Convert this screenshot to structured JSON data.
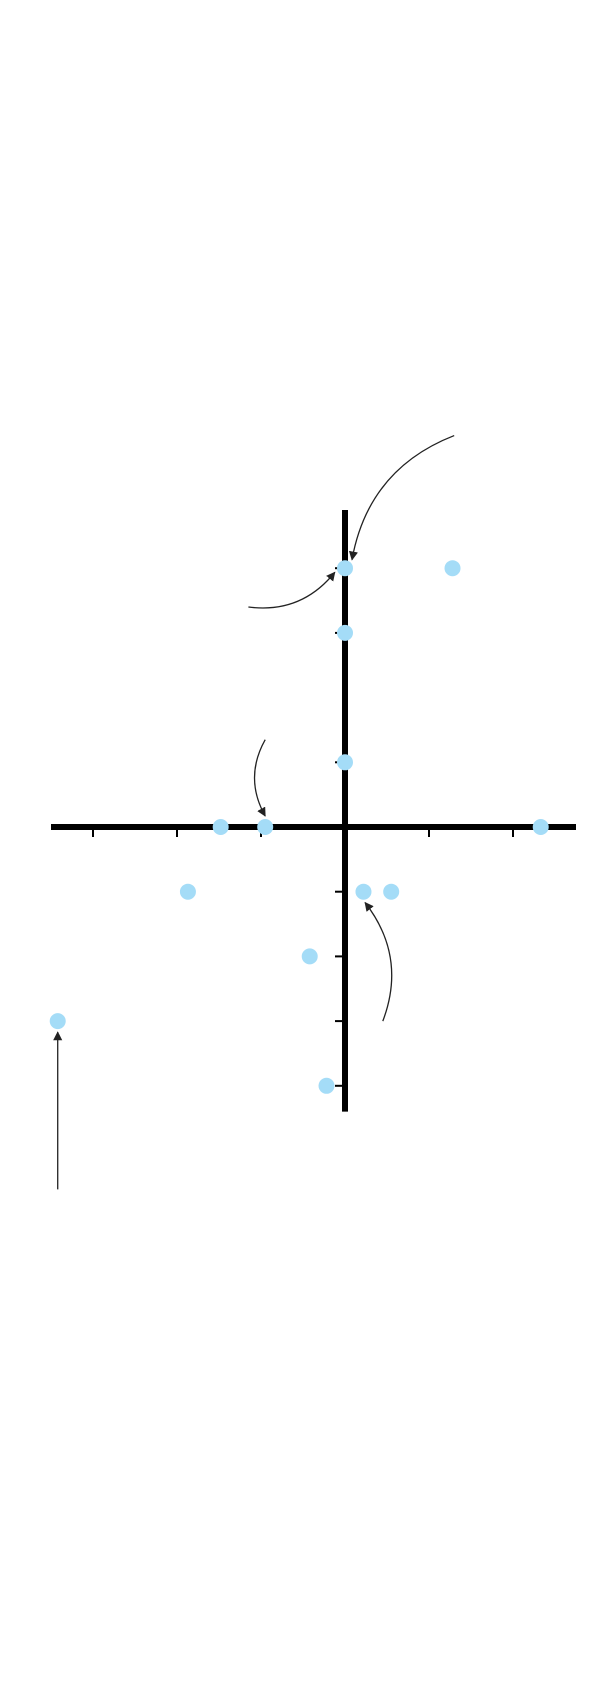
{
  "chart_data": {
    "type": "scatter",
    "xlim": [
      -3.5,
      2.75
    ],
    "ylim": [
      -4.4,
      4.9
    ],
    "x_ticks": [
      -3,
      -2,
      -1,
      1,
      2
    ],
    "y_ticks": [
      -4,
      -3,
      -2,
      -1,
      1,
      3,
      4
    ],
    "grid": false,
    "legend": "none",
    "points": [
      {
        "x": 0,
        "y": 4
      },
      {
        "x": 1.28,
        "y": 4
      },
      {
        "x": 0,
        "y": 3
      },
      {
        "x": 0,
        "y": 1
      },
      {
        "x": -1.48,
        "y": 0
      },
      {
        "x": -0.95,
        "y": 0
      },
      {
        "x": 2.33,
        "y": 0
      },
      {
        "x": -1.87,
        "y": -1
      },
      {
        "x": 0.22,
        "y": -1
      },
      {
        "x": 0.55,
        "y": -1
      },
      {
        "x": -0.42,
        "y": -2
      },
      {
        "x": -3.42,
        "y": -3
      },
      {
        "x": -0.22,
        "y": -4
      }
    ],
    "annotations": [
      {
        "target_x": 0,
        "target_y": 4,
        "from_x": 1.3,
        "from_y": 6.05,
        "style": "curve"
      },
      {
        "target_x": 0,
        "target_y": 4,
        "from_x": -1.15,
        "from_y": 3.4,
        "style": "curve"
      },
      {
        "target_x": -0.95,
        "target_y": 0,
        "from_x": -0.95,
        "from_y": 1.35,
        "style": "curve"
      },
      {
        "target_x": 0.22,
        "target_y": -1,
        "from_x": 0.45,
        "from_y": -3,
        "style": "curve"
      },
      {
        "target_x": -3.42,
        "target_y": -3,
        "from_x": -3.42,
        "from_y": -5.6,
        "style": "straight"
      }
    ],
    "colors": {
      "point": "#a4dcf7",
      "axis": "#000000",
      "arrow": "#222222"
    }
  }
}
